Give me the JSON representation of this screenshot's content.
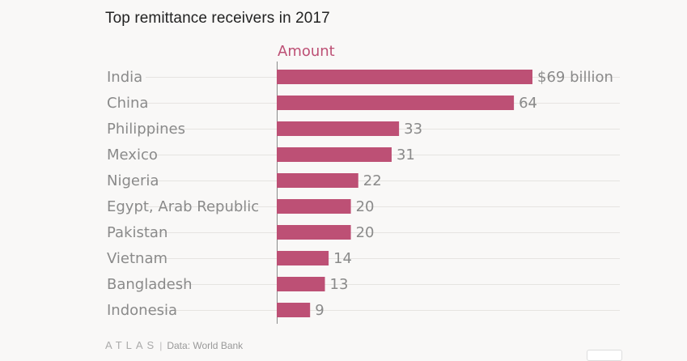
{
  "title": "Top remittance receivers in 2017",
  "footer": {
    "logo": "ATLAS",
    "separator": "|",
    "source": "Data: World Bank"
  },
  "colors": {
    "bar": "#bd5075",
    "series_label": "#bd5075",
    "text": "#8a8a8a"
  },
  "chart_data": {
    "type": "bar",
    "orientation": "horizontal",
    "title": "Top remittance receivers in 2017",
    "series_name": "Amount",
    "categories": [
      "India",
      "China",
      "Philippines",
      "Mexico",
      "Nigeria",
      "Egypt, Arab Republic",
      "Pakistan",
      "Vietnam",
      "Bangladesh",
      "Indonesia"
    ],
    "values": [
      69,
      64,
      33,
      31,
      22,
      20,
      20,
      14,
      13,
      9
    ],
    "value_labels": [
      "$69 billion",
      "64",
      "33",
      "31",
      "22",
      "20",
      "20",
      "14",
      "13",
      "9"
    ],
    "unit": "billion USD",
    "xlim": [
      0,
      69
    ],
    "grid": true,
    "legend": "none"
  }
}
